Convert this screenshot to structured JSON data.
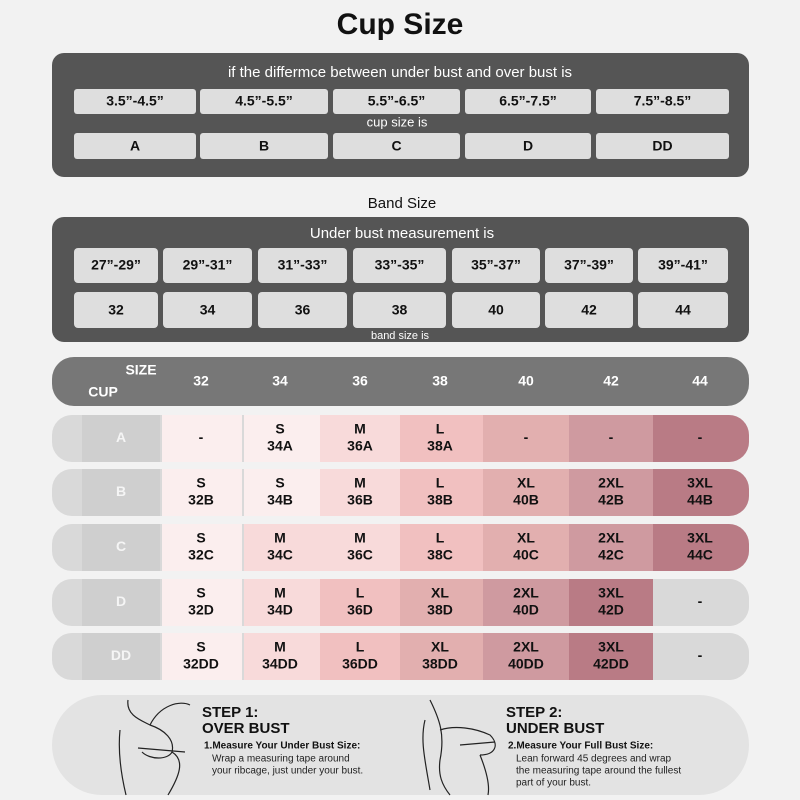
{
  "title": "Cup Size",
  "cup_section": {
    "caption": "if the differmce between under bust and over bust is",
    "ranges": [
      "3.5”-4.5”",
      "4.5”-5.5”",
      "5.5”-6.5”",
      "6.5”-7.5”",
      "7.5”-8.5”"
    ],
    "middle_caption": "cup size is",
    "cups": [
      "A",
      "B",
      "C",
      "D",
      "DD"
    ]
  },
  "band_title": "Band Size",
  "band_section": {
    "caption": "Under bust measurement is",
    "ranges": [
      "27”-29”",
      "29”-31”",
      "31”-33”",
      "33”-35”",
      "35”-37”",
      "37”-39”",
      "39”-41”"
    ],
    "sizes": [
      "32",
      "34",
      "36",
      "38",
      "40",
      "42",
      "44"
    ],
    "footer_caption": "band size is"
  },
  "table": {
    "corner_top": "SIZE",
    "corner_bottom": "CUP",
    "columns": [
      "32",
      "34",
      "36",
      "38",
      "40",
      "42",
      "44"
    ],
    "rows": [
      {
        "cup": "A",
        "cells": [
          {
            "lines": [
              "-"
            ],
            "color": "#fbeeee"
          },
          {
            "lines": [
              "S",
              "34A"
            ],
            "color": "#fbeeee"
          },
          {
            "lines": [
              "M",
              "36A"
            ],
            "color": "#f8dada"
          },
          {
            "lines": [
              "L",
              "38A"
            ],
            "color": "#f1c0c0"
          },
          {
            "lines": [
              "-"
            ],
            "color": "#e2afaf"
          },
          {
            "lines": [
              "-"
            ],
            "color": "#cf9aa0"
          },
          {
            "lines": [
              "-"
            ],
            "color": "#b97b85"
          }
        ]
      },
      {
        "cup": "B",
        "cells": [
          {
            "lines": [
              "S",
              "32B"
            ],
            "color": "#fbeeee"
          },
          {
            "lines": [
              "S",
              "34B"
            ],
            "color": "#fbeeee"
          },
          {
            "lines": [
              "M",
              "36B"
            ],
            "color": "#f8dada"
          },
          {
            "lines": [
              "L",
              "38B"
            ],
            "color": "#f1c0c0"
          },
          {
            "lines": [
              "XL",
              "40B"
            ],
            "color": "#e2afaf"
          },
          {
            "lines": [
              "2XL",
              "42B"
            ],
            "color": "#cf9aa0"
          },
          {
            "lines": [
              "3XL",
              "44B"
            ],
            "color": "#b97b85"
          }
        ]
      },
      {
        "cup": "C",
        "cells": [
          {
            "lines": [
              "S",
              "32C"
            ],
            "color": "#fbeeee"
          },
          {
            "lines": [
              "M",
              "34C"
            ],
            "color": "#f8dada"
          },
          {
            "lines": [
              "M",
              "36C"
            ],
            "color": "#f8dada"
          },
          {
            "lines": [
              "L",
              "38C"
            ],
            "color": "#f1c0c0"
          },
          {
            "lines": [
              "XL",
              "40C"
            ],
            "color": "#e2afaf"
          },
          {
            "lines": [
              "2XL",
              "42C"
            ],
            "color": "#cf9aa0"
          },
          {
            "lines": [
              "3XL",
              "44C"
            ],
            "color": "#b97b85"
          }
        ]
      },
      {
        "cup": "D",
        "cells": [
          {
            "lines": [
              "S",
              "32D"
            ],
            "color": "#fbeeee"
          },
          {
            "lines": [
              "M",
              "34D"
            ],
            "color": "#f8dada"
          },
          {
            "lines": [
              "L",
              "36D"
            ],
            "color": "#f1c0c0"
          },
          {
            "lines": [
              "XL",
              "38D"
            ],
            "color": "#e2afaf"
          },
          {
            "lines": [
              "2XL",
              "40D"
            ],
            "color": "#cf9aa0"
          },
          {
            "lines": [
              "3XL",
              "42D"
            ],
            "color": "#b97b85"
          },
          {
            "lines": [
              "-"
            ],
            "color": "#d9d9d9"
          }
        ]
      },
      {
        "cup": "DD",
        "cells": [
          {
            "lines": [
              "S",
              "32DD"
            ],
            "color": "#fbeeee"
          },
          {
            "lines": [
              "M",
              "34DD"
            ],
            "color": "#f8dada"
          },
          {
            "lines": [
              "L",
              "36DD"
            ],
            "color": "#f1c0c0"
          },
          {
            "lines": [
              "XL",
              "38DD"
            ],
            "color": "#e2afaf"
          },
          {
            "lines": [
              "2XL",
              "40DD"
            ],
            "color": "#cf9aa0"
          },
          {
            "lines": [
              "3XL",
              "42DD"
            ],
            "color": "#b97b85"
          },
          {
            "lines": [
              "-"
            ],
            "color": "#d9d9d9"
          }
        ]
      }
    ]
  },
  "steps": [
    {
      "title": "STEP 1:",
      "subtitle": "OVER BUST",
      "instruction_title": "1.Measure Your Under Bust Size:",
      "instruction": [
        "Wrap a measuring tape around",
        "your ribcage, just under your bust."
      ]
    },
    {
      "title": "STEP 2:",
      "subtitle": "UNDER BUST",
      "instruction_title": "2.Measure Your Full Bust Size:",
      "instruction": [
        "Lean forward 45 degrees and wrap",
        "the measuring tape around the fullest",
        "part of your bust."
      ]
    }
  ]
}
